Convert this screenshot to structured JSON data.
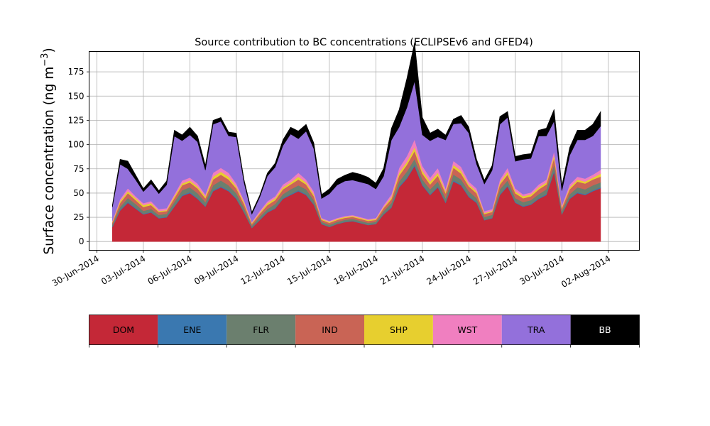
{
  "chart_data": {
    "type": "area",
    "title": "Source contribution to BC concentrations (ECLIPSEv6 and GFED4)",
    "ylabel_prefix": "Surface concentration (ng m",
    "ylabel_sup": "−3",
    "ylabel_suffix": ")",
    "xlabel": "",
    "ylim": [
      -9,
      196
    ],
    "xlim": [
      "2014-06-29T12:00",
      "2014-08-04T00:00"
    ],
    "grid": true,
    "legend": "bottom colorbar",
    "yticks": [
      0,
      25,
      50,
      75,
      100,
      125,
      150,
      175
    ],
    "xticks": [
      "30-Jun-2014",
      "03-Jul-2014",
      "06-Jul-2014",
      "09-Jul-2014",
      "12-Jul-2014",
      "15-Jul-2014",
      "18-Jul-2014",
      "21-Jul-2014",
      "24-Jul-2014",
      "27-Jul-2014",
      "30-Jul-2014",
      "02-Aug-2014"
    ],
    "x": [
      "2014-07-01",
      "2014-07-01T12:00",
      "2014-07-02",
      "2014-07-02T12:00",
      "2014-07-03",
      "2014-07-03T12:00",
      "2014-07-04",
      "2014-07-04T12:00",
      "2014-07-05",
      "2014-07-05T12:00",
      "2014-07-06",
      "2014-07-06T12:00",
      "2014-07-07",
      "2014-07-07T12:00",
      "2014-07-08",
      "2014-07-08T12:00",
      "2014-07-09",
      "2014-07-09T12:00",
      "2014-07-10",
      "2014-07-10T12:00",
      "2014-07-11",
      "2014-07-11T12:00",
      "2014-07-12",
      "2014-07-12T12:00",
      "2014-07-13",
      "2014-07-13T12:00",
      "2014-07-14",
      "2014-07-14T12:00",
      "2014-07-15",
      "2014-07-15T12:00",
      "2014-07-16",
      "2014-07-16T12:00",
      "2014-07-17",
      "2014-07-17T12:00",
      "2014-07-18",
      "2014-07-18T12:00",
      "2014-07-19",
      "2014-07-19T12:00",
      "2014-07-20",
      "2014-07-20T12:00",
      "2014-07-21",
      "2014-07-21T12:00",
      "2014-07-22",
      "2014-07-22T12:00",
      "2014-07-23",
      "2014-07-23T12:00",
      "2014-07-24",
      "2014-07-24T12:00",
      "2014-07-25",
      "2014-07-25T12:00",
      "2014-07-26",
      "2014-07-26T12:00",
      "2014-07-27",
      "2014-07-27T12:00",
      "2014-07-28",
      "2014-07-28T12:00",
      "2014-07-29",
      "2014-07-29T12:00",
      "2014-07-30",
      "2014-07-30T12:00",
      "2014-07-31",
      "2014-07-31T12:00",
      "2014-08-01",
      "2014-08-01T12:00"
    ],
    "series": [
      {
        "name": "DOM",
        "color": "#c42837",
        "values": [
          15,
          32,
          40,
          34,
          28,
          30,
          24,
          25,
          36,
          47,
          50,
          44,
          36,
          52,
          56,
          52,
          44,
          30,
          14,
          22,
          30,
          34,
          44,
          48,
          52,
          48,
          38,
          18,
          15,
          18,
          20,
          21,
          19,
          17,
          18,
          28,
          35,
          56,
          65,
          78,
          58,
          48,
          56,
          40,
          62,
          58,
          46,
          40,
          22,
          24,
          48,
          57,
          40,
          36,
          38,
          44,
          48,
          72,
          28,
          44,
          50,
          48,
          52,
          55
        ]
      },
      {
        "name": "ENE",
        "color": "#3a78b0",
        "values": [
          0.5,
          0.8,
          1,
          0.8,
          0.6,
          0.7,
          0.5,
          0.5,
          0.8,
          1,
          1,
          0.8,
          0.7,
          1,
          1,
          1,
          0.8,
          0.6,
          0.3,
          0.5,
          0.6,
          0.7,
          0.8,
          0.9,
          1,
          0.9,
          0.7,
          0.4,
          0.3,
          0.3,
          0.4,
          0.4,
          0.4,
          0.3,
          0.3,
          0.5,
          0.7,
          1,
          1.2,
          1.4,
          1.1,
          0.9,
          1,
          0.8,
          1.2,
          1.1,
          0.9,
          0.8,
          0.4,
          0.5,
          0.9,
          1.1,
          0.8,
          0.7,
          0.7,
          0.8,
          0.9,
          1.3,
          0.5,
          0.8,
          0.9,
          0.9,
          1,
          1
        ]
      },
      {
        "name": "FLR",
        "color": "#6b7f6e",
        "values": [
          2,
          3,
          4,
          4,
          3,
          3,
          3,
          3,
          4,
          5,
          5,
          5,
          4,
          5,
          6,
          5,
          5,
          4,
          2,
          3,
          3,
          4,
          4,
          5,
          5,
          5,
          4,
          2,
          2,
          2,
          2,
          2,
          2,
          2,
          2,
          3,
          4,
          5,
          6,
          6,
          5,
          5,
          5,
          4,
          6,
          5,
          5,
          4,
          3,
          3,
          5,
          5,
          4,
          4,
          4,
          4,
          5,
          6,
          3,
          4,
          5,
          5,
          5,
          5
        ]
      },
      {
        "name": "IND",
        "color": "#c96455",
        "values": [
          2,
          4,
          5,
          4,
          4,
          4,
          3,
          3,
          4,
          5,
          5,
          5,
          4,
          6,
          6,
          6,
          5,
          4,
          2,
          3,
          4,
          4,
          5,
          5,
          6,
          5,
          4,
          2,
          2,
          2,
          2,
          2,
          2,
          2,
          2,
          3,
          4,
          6,
          7,
          8,
          6,
          5,
          6,
          5,
          7,
          6,
          5,
          5,
          3,
          3,
          5,
          6,
          5,
          4,
          4,
          5,
          5,
          7,
          3,
          5,
          6,
          6,
          6,
          6
        ]
      },
      {
        "name": "SHP",
        "color": "#e7cf2f",
        "values": [
          1,
          2,
          2,
          2,
          2,
          2,
          1,
          1,
          2,
          2,
          2,
          2,
          2,
          3,
          3,
          3,
          2,
          2,
          1,
          1,
          2,
          2,
          2,
          2,
          3,
          2,
          2,
          1,
          1,
          1,
          1,
          1,
          1,
          1,
          1,
          1,
          2,
          3,
          3,
          4,
          3,
          3,
          3,
          2,
          3,
          3,
          2,
          2,
          1,
          1,
          2,
          3,
          2,
          2,
          2,
          2,
          2,
          3,
          1,
          2,
          2,
          2,
          2,
          3
        ]
      },
      {
        "name": "WST",
        "color": "#f07fc0",
        "values": [
          1,
          2,
          3,
          2,
          2,
          2,
          2,
          2,
          2,
          3,
          3,
          3,
          2,
          4,
          4,
          4,
          3,
          2,
          1,
          2,
          2,
          2,
          3,
          3,
          4,
          3,
          3,
          1,
          1,
          1,
          1,
          1,
          1,
          1,
          1,
          2,
          3,
          5,
          6,
          8,
          5,
          4,
          5,
          3,
          4,
          4,
          3,
          3,
          2,
          2,
          3,
          4,
          3,
          2,
          2,
          3,
          3,
          4,
          2,
          3,
          3,
          3,
          3,
          4
        ]
      },
      {
        "name": "TRA",
        "color": "#9370db",
        "values": [
          14,
          36,
          20,
          17,
          12,
          18,
          16,
          24,
          60,
          41,
          44,
          43,
          25,
          50,
          48,
          38,
          48,
          18,
          8,
          14,
          26,
          30,
          40,
          47,
          35,
          50,
          44,
          20,
          28,
          34,
          36,
          36,
          36,
          36,
          30,
          30,
          56,
          42,
          50,
          60,
          32,
          38,
          32,
          50,
          38,
          45,
          50,
          25,
          28,
          40,
          57,
          52,
          28,
          36,
          35,
          50,
          45,
          31,
          15,
          30,
          38,
          40,
          40,
          45
        ]
      },
      {
        "name": "BB",
        "color": "#000000",
        "values": [
          2,
          5,
          8,
          5,
          3,
          4,
          3,
          4,
          6,
          6,
          8,
          6,
          5,
          4,
          4,
          4,
          4,
          3,
          2,
          2,
          3,
          4,
          6,
          7,
          8,
          7,
          6,
          4,
          5,
          6,
          6,
          8,
          8,
          7,
          6,
          8,
          12,
          18,
          30,
          40,
          18,
          8,
          8,
          5,
          5,
          8,
          6,
          5,
          4,
          5,
          8,
          6,
          5,
          5,
          5,
          6,
          8,
          12,
          5,
          8,
          10,
          10,
          12,
          15
        ]
      }
    ]
  }
}
